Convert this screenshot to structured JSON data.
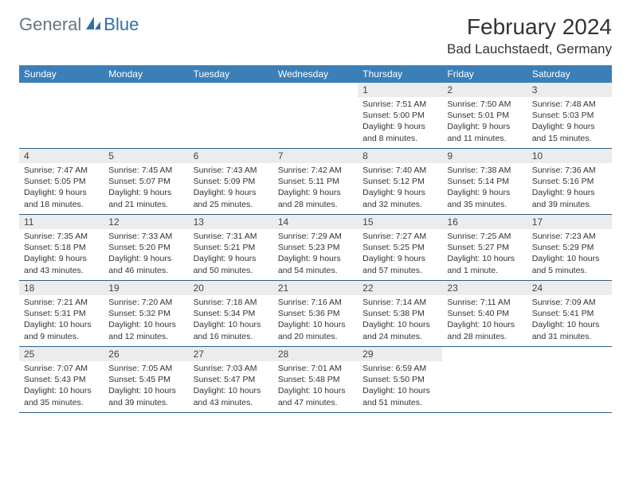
{
  "brand": {
    "part1": "General",
    "part2": "Blue"
  },
  "title": "February 2024",
  "location": "Bad Lauchstaedt, Germany",
  "header_bg": "#3b7fb8",
  "daynum_bg": "#ececec",
  "divider_color": "#2b5f8a",
  "day_header_fontsize": 12,
  "cell_fontsize": 10.5,
  "days_of_week": [
    "Sunday",
    "Monday",
    "Tuesday",
    "Wednesday",
    "Thursday",
    "Friday",
    "Saturday"
  ],
  "weeks": [
    [
      null,
      null,
      null,
      null,
      {
        "n": "1",
        "sunrise": "7:51 AM",
        "sunset": "5:00 PM",
        "daylight": "9 hours and 8 minutes."
      },
      {
        "n": "2",
        "sunrise": "7:50 AM",
        "sunset": "5:01 PM",
        "daylight": "9 hours and 11 minutes."
      },
      {
        "n": "3",
        "sunrise": "7:48 AM",
        "sunset": "5:03 PM",
        "daylight": "9 hours and 15 minutes."
      }
    ],
    [
      {
        "n": "4",
        "sunrise": "7:47 AM",
        "sunset": "5:05 PM",
        "daylight": "9 hours and 18 minutes."
      },
      {
        "n": "5",
        "sunrise": "7:45 AM",
        "sunset": "5:07 PM",
        "daylight": "9 hours and 21 minutes."
      },
      {
        "n": "6",
        "sunrise": "7:43 AM",
        "sunset": "5:09 PM",
        "daylight": "9 hours and 25 minutes."
      },
      {
        "n": "7",
        "sunrise": "7:42 AM",
        "sunset": "5:11 PM",
        "daylight": "9 hours and 28 minutes."
      },
      {
        "n": "8",
        "sunrise": "7:40 AM",
        "sunset": "5:12 PM",
        "daylight": "9 hours and 32 minutes."
      },
      {
        "n": "9",
        "sunrise": "7:38 AM",
        "sunset": "5:14 PM",
        "daylight": "9 hours and 35 minutes."
      },
      {
        "n": "10",
        "sunrise": "7:36 AM",
        "sunset": "5:16 PM",
        "daylight": "9 hours and 39 minutes."
      }
    ],
    [
      {
        "n": "11",
        "sunrise": "7:35 AM",
        "sunset": "5:18 PM",
        "daylight": "9 hours and 43 minutes."
      },
      {
        "n": "12",
        "sunrise": "7:33 AM",
        "sunset": "5:20 PM",
        "daylight": "9 hours and 46 minutes."
      },
      {
        "n": "13",
        "sunrise": "7:31 AM",
        "sunset": "5:21 PM",
        "daylight": "9 hours and 50 minutes."
      },
      {
        "n": "14",
        "sunrise": "7:29 AM",
        "sunset": "5:23 PM",
        "daylight": "9 hours and 54 minutes."
      },
      {
        "n": "15",
        "sunrise": "7:27 AM",
        "sunset": "5:25 PM",
        "daylight": "9 hours and 57 minutes."
      },
      {
        "n": "16",
        "sunrise": "7:25 AM",
        "sunset": "5:27 PM",
        "daylight": "10 hours and 1 minute."
      },
      {
        "n": "17",
        "sunrise": "7:23 AM",
        "sunset": "5:29 PM",
        "daylight": "10 hours and 5 minutes."
      }
    ],
    [
      {
        "n": "18",
        "sunrise": "7:21 AM",
        "sunset": "5:31 PM",
        "daylight": "10 hours and 9 minutes."
      },
      {
        "n": "19",
        "sunrise": "7:20 AM",
        "sunset": "5:32 PM",
        "daylight": "10 hours and 12 minutes."
      },
      {
        "n": "20",
        "sunrise": "7:18 AM",
        "sunset": "5:34 PM",
        "daylight": "10 hours and 16 minutes."
      },
      {
        "n": "21",
        "sunrise": "7:16 AM",
        "sunset": "5:36 PM",
        "daylight": "10 hours and 20 minutes."
      },
      {
        "n": "22",
        "sunrise": "7:14 AM",
        "sunset": "5:38 PM",
        "daylight": "10 hours and 24 minutes."
      },
      {
        "n": "23",
        "sunrise": "7:11 AM",
        "sunset": "5:40 PM",
        "daylight": "10 hours and 28 minutes."
      },
      {
        "n": "24",
        "sunrise": "7:09 AM",
        "sunset": "5:41 PM",
        "daylight": "10 hours and 31 minutes."
      }
    ],
    [
      {
        "n": "25",
        "sunrise": "7:07 AM",
        "sunset": "5:43 PM",
        "daylight": "10 hours and 35 minutes."
      },
      {
        "n": "26",
        "sunrise": "7:05 AM",
        "sunset": "5:45 PM",
        "daylight": "10 hours and 39 minutes."
      },
      {
        "n": "27",
        "sunrise": "7:03 AM",
        "sunset": "5:47 PM",
        "daylight": "10 hours and 43 minutes."
      },
      {
        "n": "28",
        "sunrise": "7:01 AM",
        "sunset": "5:48 PM",
        "daylight": "10 hours and 47 minutes."
      },
      {
        "n": "29",
        "sunrise": "6:59 AM",
        "sunset": "5:50 PM",
        "daylight": "10 hours and 51 minutes."
      },
      null,
      null
    ]
  ]
}
